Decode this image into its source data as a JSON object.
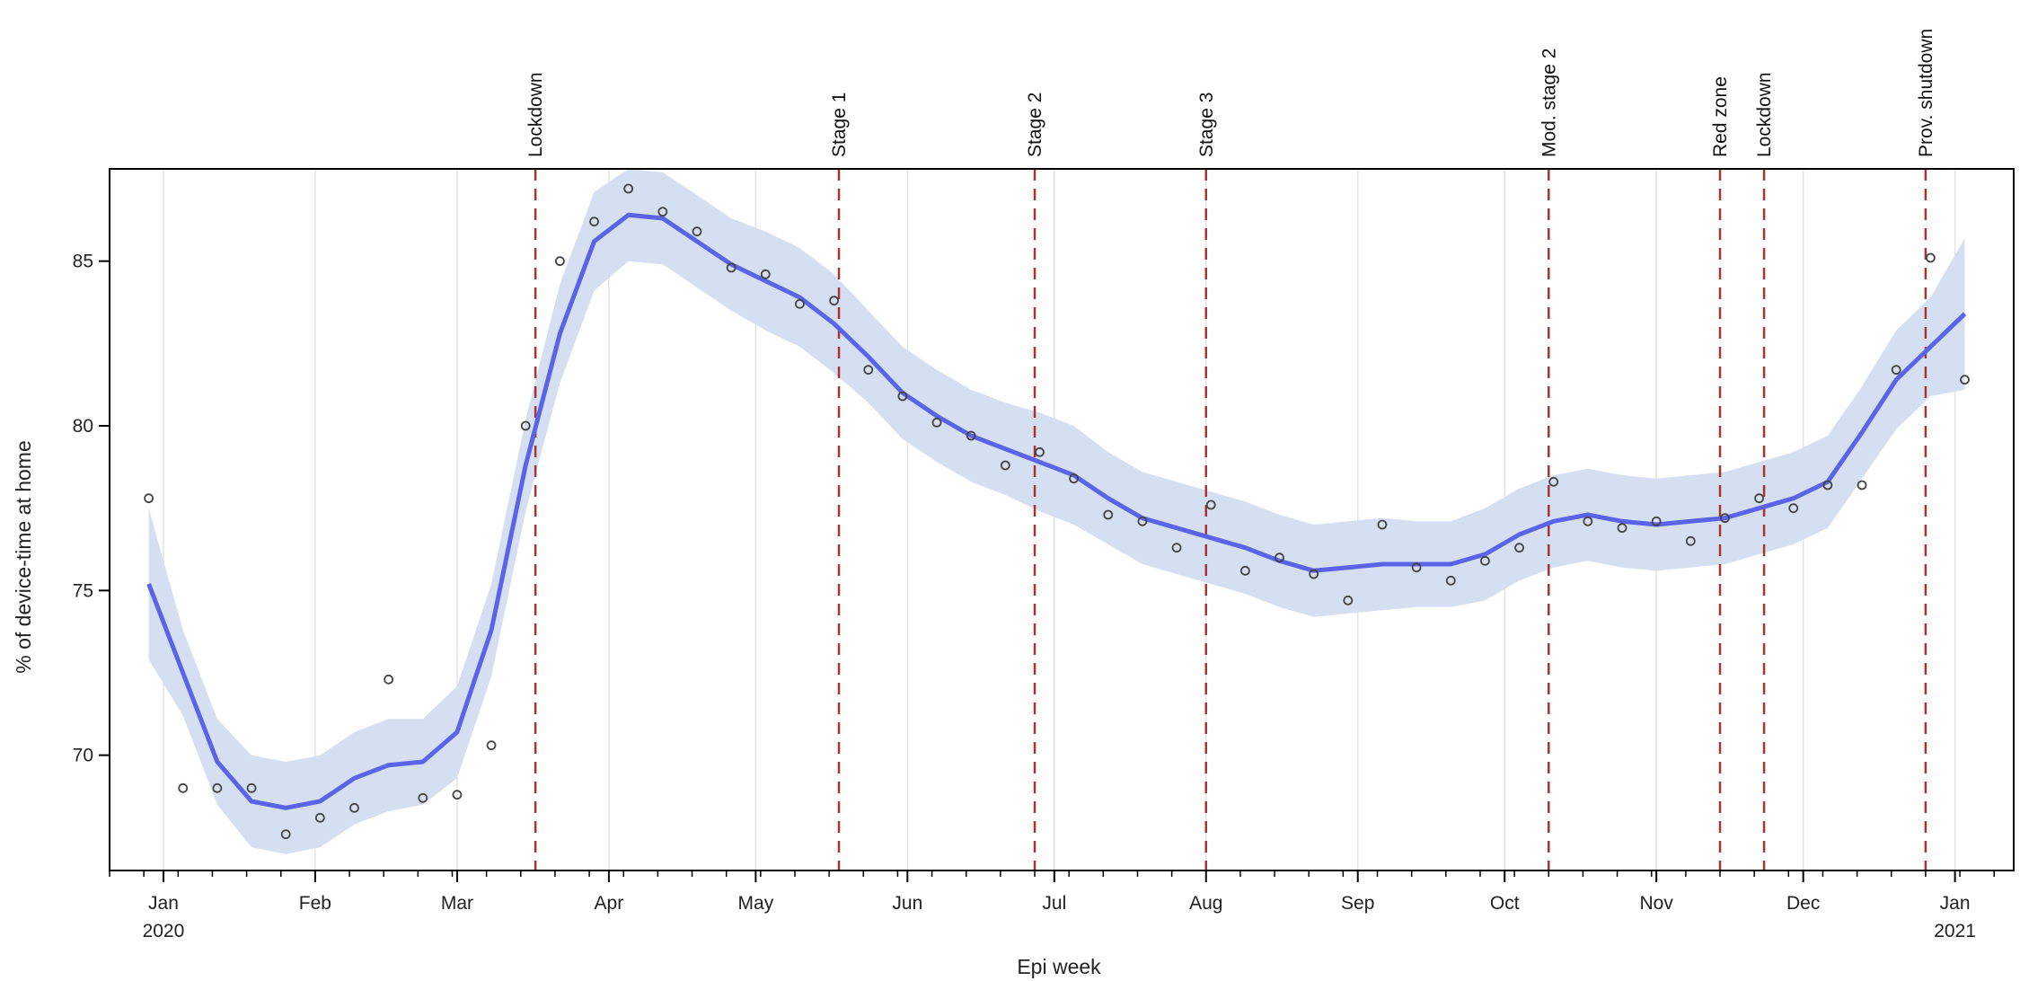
{
  "chart_data": {
    "type": "line",
    "title": "",
    "xlabel": "Epi week",
    "ylabel": "% of device-time at home",
    "ylim": [
      66.5,
      87.8
    ],
    "yticks": [
      70,
      75,
      80,
      85
    ],
    "x_range": [
      "2019-12-21",
      "2021-01-13"
    ],
    "x_ticks": [
      {
        "date": "2020-01-01",
        "label": "Jan",
        "sublabel": "2020"
      },
      {
        "date": "2020-02-01",
        "label": "Feb",
        "sublabel": ""
      },
      {
        "date": "2020-03-01",
        "label": "Mar",
        "sublabel": ""
      },
      {
        "date": "2020-04-01",
        "label": "Apr",
        "sublabel": ""
      },
      {
        "date": "2020-05-01",
        "label": "May",
        "sublabel": ""
      },
      {
        "date": "2020-06-01",
        "label": "Jun",
        "sublabel": ""
      },
      {
        "date": "2020-07-01",
        "label": "Jul",
        "sublabel": ""
      },
      {
        "date": "2020-08-01",
        "label": "Aug",
        "sublabel": ""
      },
      {
        "date": "2020-09-01",
        "label": "Sep",
        "sublabel": ""
      },
      {
        "date": "2020-10-01",
        "label": "Oct",
        "sublabel": ""
      },
      {
        "date": "2020-11-01",
        "label": "Nov",
        "sublabel": ""
      },
      {
        "date": "2020-12-01",
        "label": "Dec",
        "sublabel": ""
      },
      {
        "date": "2021-01-01",
        "label": "Jan",
        "sublabel": "2021"
      }
    ],
    "grid": "vertical",
    "events": [
      {
        "date": "2020-03-17",
        "label": "Lockdown"
      },
      {
        "date": "2020-05-18",
        "label": "Stage 1"
      },
      {
        "date": "2020-06-27",
        "label": "Stage 2"
      },
      {
        "date": "2020-08-01",
        "label": "Stage 3"
      },
      {
        "date": "2020-10-10",
        "label": "Mod. stage 2"
      },
      {
        "date": "2020-11-14",
        "label": "Red zone"
      },
      {
        "date": "2020-11-23",
        "label": "Lockdown"
      },
      {
        "date": "2020-12-26",
        "label": "Prov. shutdown"
      }
    ],
    "colors": {
      "line": "#5b63e8",
      "band": "#d4e0f1",
      "points": "#444444",
      "event_line": "#a8332f",
      "grid": "#e3e3e3",
      "frame": "#000000"
    },
    "series": [
      {
        "type": "scatter",
        "x": [
          "2019-12-29",
          "2020-01-05",
          "2020-01-12",
          "2020-01-19",
          "2020-01-26",
          "2020-02-02",
          "2020-02-09",
          "2020-02-16",
          "2020-02-23",
          "2020-03-01",
          "2020-03-08",
          "2020-03-15",
          "2020-03-22",
          "2020-03-29",
          "2020-04-05",
          "2020-04-12",
          "2020-04-19",
          "2020-04-26",
          "2020-05-03",
          "2020-05-10",
          "2020-05-17",
          "2020-05-24",
          "2020-05-31",
          "2020-06-07",
          "2020-06-14",
          "2020-06-21",
          "2020-06-28",
          "2020-07-05",
          "2020-07-12",
          "2020-07-19",
          "2020-07-26",
          "2020-08-02",
          "2020-08-09",
          "2020-08-16",
          "2020-08-23",
          "2020-08-30",
          "2020-09-06",
          "2020-09-13",
          "2020-09-20",
          "2020-09-27",
          "2020-10-04",
          "2020-10-11",
          "2020-10-18",
          "2020-10-25",
          "2020-11-01",
          "2020-11-08",
          "2020-11-15",
          "2020-11-22",
          "2020-11-29",
          "2020-12-06",
          "2020-12-13",
          "2020-12-20",
          "2020-12-27",
          "2021-01-03"
        ],
        "values": [
          77.8,
          69.0,
          69.0,
          69.0,
          67.6,
          68.1,
          68.4,
          72.3,
          68.7,
          68.8,
          70.3,
          80.0,
          85.0,
          86.2,
          87.2,
          86.5,
          85.9,
          84.8,
          84.6,
          83.7,
          83.8,
          81.7,
          80.9,
          80.1,
          79.7,
          78.8,
          79.2,
          78.4,
          77.3,
          77.1,
          76.3,
          77.6,
          75.6,
          76.0,
          75.5,
          74.7,
          77.0,
          75.7,
          75.3,
          75.9,
          76.3,
          78.3,
          77.1,
          76.9,
          77.1,
          76.5,
          77.2,
          77.8,
          77.5,
          78.2,
          78.2,
          81.7,
          85.1,
          81.4
        ]
      },
      {
        "type": "line",
        "x": [
          "2019-12-29",
          "2020-01-05",
          "2020-01-12",
          "2020-01-19",
          "2020-01-26",
          "2020-02-02",
          "2020-02-09",
          "2020-02-16",
          "2020-02-23",
          "2020-03-01",
          "2020-03-08",
          "2020-03-15",
          "2020-03-22",
          "2020-03-29",
          "2020-04-05",
          "2020-04-12",
          "2020-04-19",
          "2020-04-26",
          "2020-05-03",
          "2020-05-10",
          "2020-05-17",
          "2020-05-24",
          "2020-05-31",
          "2020-06-07",
          "2020-06-14",
          "2020-06-21",
          "2020-06-28",
          "2020-07-05",
          "2020-07-12",
          "2020-07-19",
          "2020-07-26",
          "2020-08-02",
          "2020-08-09",
          "2020-08-16",
          "2020-08-23",
          "2020-08-30",
          "2020-09-06",
          "2020-09-13",
          "2020-09-20",
          "2020-09-27",
          "2020-10-04",
          "2020-10-11",
          "2020-10-18",
          "2020-10-25",
          "2020-11-01",
          "2020-11-08",
          "2020-11-15",
          "2020-11-22",
          "2020-11-29",
          "2020-12-06",
          "2020-12-13",
          "2020-12-20",
          "2020-12-27",
          "2021-01-03"
        ],
        "values": [
          75.2,
          72.5,
          69.8,
          68.6,
          68.4,
          68.6,
          69.3,
          69.7,
          69.8,
          70.7,
          73.8,
          78.8,
          82.8,
          85.6,
          86.4,
          86.3,
          85.6,
          84.9,
          84.4,
          83.9,
          83.1,
          82.1,
          81.0,
          80.3,
          79.7,
          79.3,
          78.9,
          78.5,
          77.8,
          77.2,
          76.9,
          76.6,
          76.3,
          75.9,
          75.6,
          75.7,
          75.8,
          75.8,
          75.8,
          76.1,
          76.7,
          77.1,
          77.3,
          77.1,
          77.0,
          77.1,
          77.2,
          77.5,
          77.8,
          78.3,
          79.8,
          81.4,
          82.4,
          83.4
        ]
      },
      {
        "type": "band",
        "x": [
          "2019-12-29",
          "2020-01-05",
          "2020-01-12",
          "2020-01-19",
          "2020-01-26",
          "2020-02-02",
          "2020-02-09",
          "2020-02-16",
          "2020-02-23",
          "2020-03-01",
          "2020-03-08",
          "2020-03-15",
          "2020-03-22",
          "2020-03-29",
          "2020-04-05",
          "2020-04-12",
          "2020-04-19",
          "2020-04-26",
          "2020-05-03",
          "2020-05-10",
          "2020-05-17",
          "2020-05-24",
          "2020-05-31",
          "2020-06-07",
          "2020-06-14",
          "2020-06-21",
          "2020-06-28",
          "2020-07-05",
          "2020-07-12",
          "2020-07-19",
          "2020-07-26",
          "2020-08-02",
          "2020-08-09",
          "2020-08-16",
          "2020-08-23",
          "2020-08-30",
          "2020-09-06",
          "2020-09-13",
          "2020-09-20",
          "2020-09-27",
          "2020-10-04",
          "2020-10-11",
          "2020-10-18",
          "2020-10-25",
          "2020-11-01",
          "2020-11-08",
          "2020-11-15",
          "2020-11-22",
          "2020-11-29",
          "2020-12-06",
          "2020-12-13",
          "2020-12-20",
          "2020-12-27",
          "2021-01-03"
        ],
        "lower": [
          72.9,
          71.2,
          68.5,
          67.2,
          67.0,
          67.2,
          67.9,
          68.3,
          68.5,
          69.3,
          72.4,
          77.4,
          81.3,
          84.1,
          85.0,
          84.9,
          84.2,
          83.5,
          82.9,
          82.4,
          81.6,
          80.7,
          79.6,
          78.9,
          78.3,
          77.9,
          77.4,
          77.0,
          76.4,
          75.8,
          75.5,
          75.2,
          74.9,
          74.5,
          74.2,
          74.3,
          74.4,
          74.5,
          74.5,
          74.7,
          75.3,
          75.7,
          75.9,
          75.7,
          75.6,
          75.7,
          75.8,
          76.1,
          76.4,
          76.9,
          78.4,
          79.9,
          80.9,
          81.1
        ]
      }
    ]
  }
}
